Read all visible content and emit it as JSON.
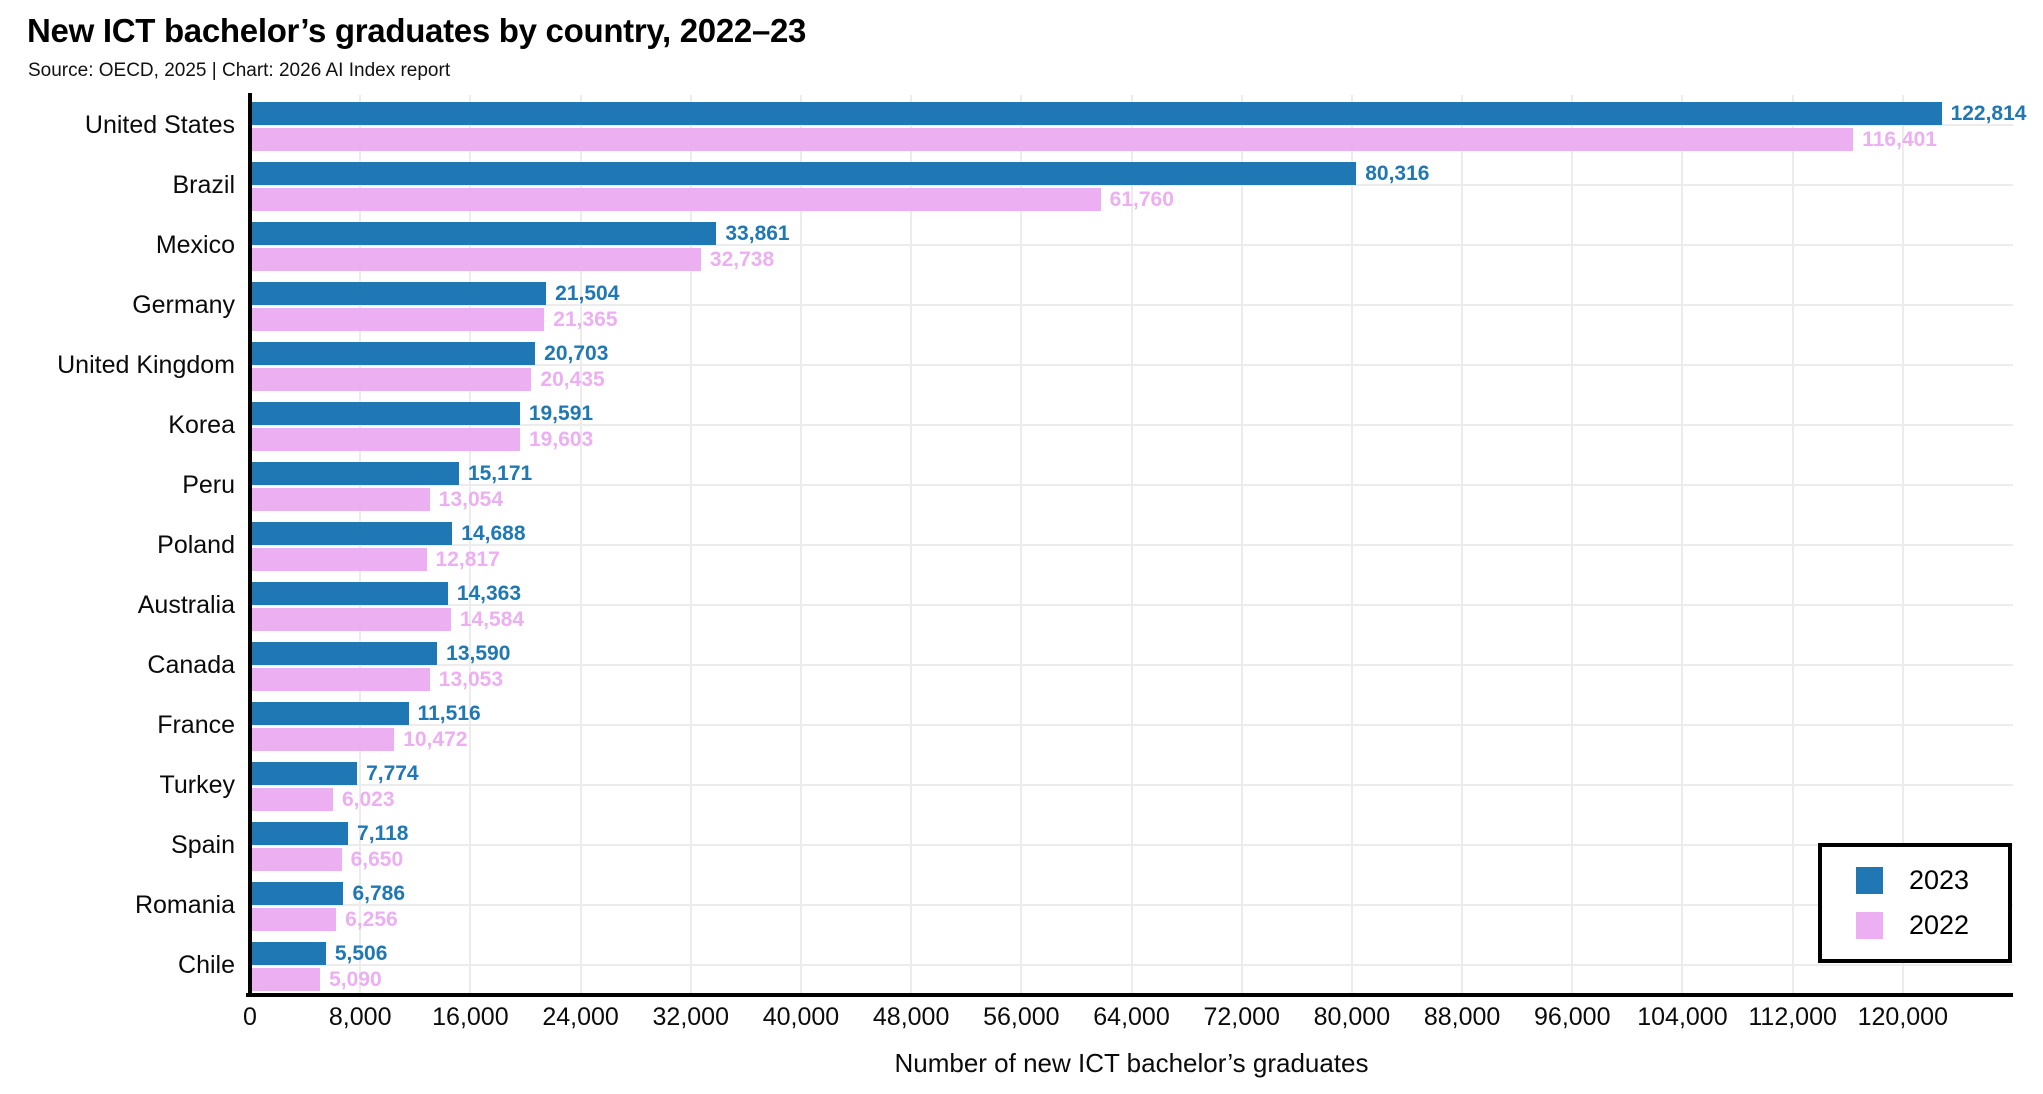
{
  "header": {
    "title": "New ICT bachelor’s graduates by country, 2022–23",
    "subtitle": "Source: OECD, 2025 | Chart: 2026 AI Index report"
  },
  "colors": {
    "series_2023": "#1f78b4",
    "series_2022": "#ecaff2",
    "grid": "#ececec",
    "axis": "#000000"
  },
  "chart_data": {
    "type": "bar",
    "orientation": "horizontal",
    "title": "New ICT bachelor’s graduates by country, 2022–23",
    "subtitle": "Source: OECD, 2025 | Chart: 2026 AI Index report",
    "xlabel": "Number of new ICT bachelor’s graduates",
    "ylabel": "",
    "xlim": [
      0,
      128000
    ],
    "grid": true,
    "legend_position": "bottom-right",
    "categories": [
      "United States",
      "Brazil",
      "Mexico",
      "Germany",
      "United Kingdom",
      "Korea",
      "Peru",
      "Poland",
      "Australia",
      "Canada",
      "France",
      "Turkey",
      "Spain",
      "Romania",
      "Chile"
    ],
    "series": [
      {
        "name": "2023",
        "color_key": "series_2023",
        "values": [
          122814,
          80316,
          33861,
          21504,
          20703,
          19591,
          15171,
          14688,
          14363,
          13590,
          11516,
          7774,
          7118,
          6786,
          5506
        ],
        "labels": [
          "122,814",
          "80,316",
          "33,861",
          "21,504",
          "20,703",
          "19,591",
          "15,171",
          "14,688",
          "14,363",
          "13,590",
          "11,516",
          "7,774",
          "7,118",
          "6,786",
          "5,506"
        ]
      },
      {
        "name": "2022",
        "color_key": "series_2022",
        "values": [
          116401,
          61760,
          32738,
          21365,
          20435,
          19603,
          13054,
          12817,
          14584,
          13053,
          10472,
          6023,
          6650,
          6256,
          5090
        ],
        "labels": [
          "116,401",
          "61,760",
          "32,738",
          "21,365",
          "20,435",
          "19,603",
          "13,054",
          "12,817",
          "14,584",
          "13,053",
          "10,472",
          "6,023",
          "6,650",
          "6,256",
          "5,090"
        ]
      }
    ],
    "x_ticks": [
      0,
      8000,
      16000,
      24000,
      32000,
      40000,
      48000,
      56000,
      64000,
      72000,
      80000,
      88000,
      96000,
      104000,
      112000,
      120000
    ],
    "x_tick_labels": [
      "0",
      "8,000",
      "16,000",
      "24,000",
      "32,000",
      "40,000",
      "48,000",
      "56,000",
      "64,000",
      "72,000",
      "80,000",
      "88,000",
      "96,000",
      "104,000",
      "112,000",
      "120,000"
    ],
    "legend": {
      "entries": [
        {
          "label": "2023",
          "color_key": "series_2023"
        },
        {
          "label": "2022",
          "color_key": "series_2022"
        }
      ]
    }
  }
}
